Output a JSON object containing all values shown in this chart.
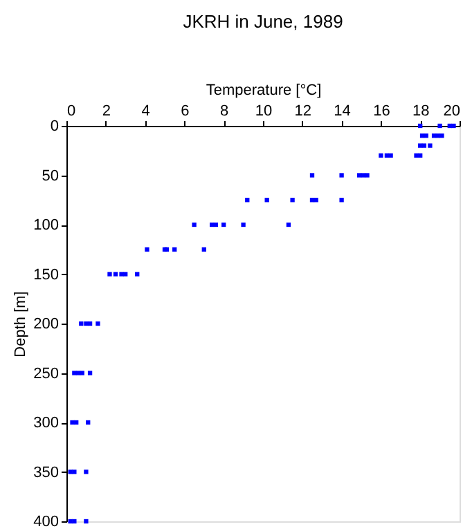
{
  "chart_data": {
    "type": "scatter",
    "title": "JKRH in June, 1989",
    "xlabel": "Temperature [°C]",
    "ylabel": "Depth [m]",
    "x": [
      18.0,
      19.0,
      19.5,
      19.7,
      18.1,
      18.3,
      18.7,
      18.9,
      19.1,
      18.0,
      18.2,
      18.5,
      16.0,
      16.3,
      16.5,
      17.8,
      18.0,
      12.5,
      14.0,
      14.9,
      15.1,
      15.3,
      9.2,
      10.2,
      11.5,
      12.5,
      12.7,
      14.0,
      6.5,
      7.4,
      7.6,
      8.0,
      9.0,
      11.3,
      4.1,
      5.0,
      5.1,
      5.5,
      7.0,
      2.2,
      2.5,
      2.8,
      3.0,
      3.6,
      0.75,
      1.0,
      1.2,
      1.6,
      0.4,
      0.6,
      0.8,
      1.2,
      0.3,
      0.5,
      1.1,
      0.2,
      0.4,
      1.0,
      0.2,
      0.4,
      1.0
    ],
    "series": [
      {
        "color": "#0000ff",
        "values": [
          0,
          0,
          0,
          0,
          10,
          10,
          10,
          10,
          10,
          20,
          20,
          20,
          30,
          30,
          30,
          30,
          30,
          50,
          50,
          50,
          50,
          50,
          75,
          75,
          75,
          75,
          75,
          75,
          100,
          100,
          100,
          100,
          100,
          100,
          125,
          125,
          125,
          125,
          125,
          150,
          150,
          150,
          150,
          150,
          200,
          200,
          200,
          200,
          250,
          250,
          250,
          250,
          300,
          300,
          300,
          350,
          350,
          350,
          400,
          400,
          400
        ]
      }
    ],
    "xlim": [
      0,
      20
    ],
    "xticks": [
      0,
      2,
      4,
      6,
      8,
      10,
      12,
      14,
      16,
      18,
      20
    ],
    "ylim": [
      400,
      0
    ],
    "yticks": [
      0,
      50,
      100,
      150,
      200,
      250,
      300,
      350,
      400
    ],
    "grid": false,
    "marker": "square",
    "legend": false
  }
}
